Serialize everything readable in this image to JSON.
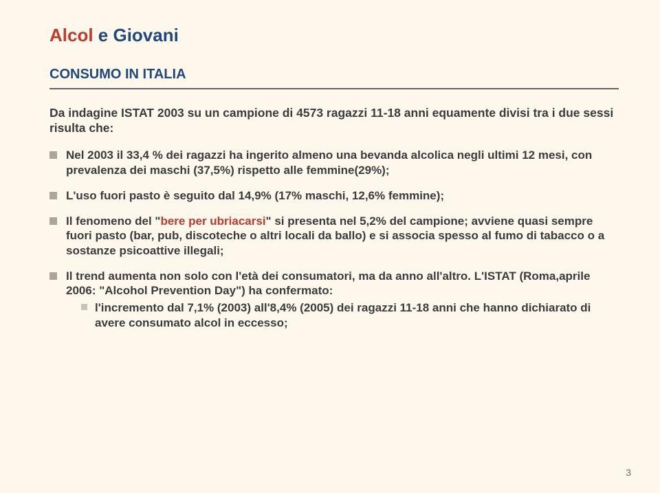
{
  "title": {
    "part_red": "Alcol ",
    "part_blue": "e Giovani"
  },
  "subtitle": "CONSUMO IN ITALIA",
  "lead": "Da indagine ISTAT 2003 su un campione di 4573 ragazzi 11-18 anni equamente divisi tra i due sessi risulta che:",
  "b1": "Nel 2003 il 33,4 % dei ragazzi ha ingerito almeno una bevanda alcolica negli ultimi 12 mesi, con prevalenza dei maschi (37,5%) rispetto alle femmine(29%);",
  "b2": "L'uso fuori pasto è seguito dal 14,9% (17% maschi, 12,6% femmine);",
  "b3a": "Il fenomeno del \"",
  "b3_emph": "bere per ubriacarsi",
  "b3b": "\" si presenta nel 5,2% del campione; avviene quasi sempre fuori pasto (bar, pub, discoteche o altri locali da ballo) e si associa spesso al fumo di tabacco o a sostanze psicoattive illegali;",
  "b4": "Il trend aumenta non solo con l'età dei consumatori, ma da anno all'altro.      L'ISTAT (Roma,aprile 2006: \"Alcohol Prevention Day\") ha confermato:",
  "b4s1": "l'incremento dal 7,1% (2003) all'8,4% (2005) dei ragazzi 11-18 anni che hanno dichiarato di avere consumato alcol in eccesso;",
  "page_number": "3"
}
